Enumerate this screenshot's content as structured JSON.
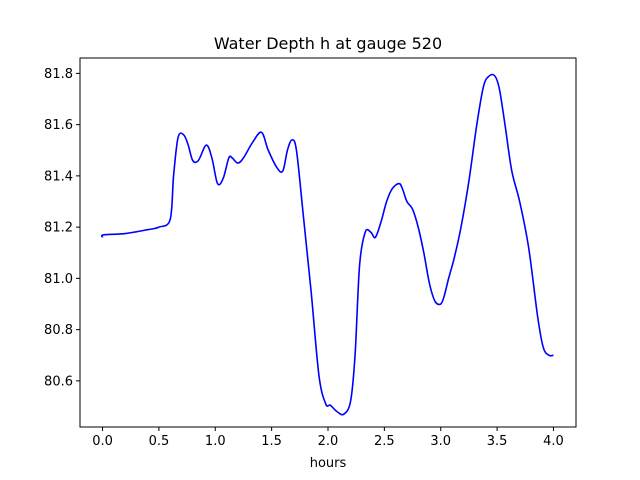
{
  "chart_data": {
    "type": "line",
    "title": "Water Depth h at gauge 520",
    "xlabel": "hours",
    "ylabel": "",
    "xlim": [
      -0.2,
      4.2
    ],
    "ylim": [
      80.42,
      81.86
    ],
    "xticks": [
      0.0,
      0.5,
      1.0,
      1.5,
      2.0,
      2.5,
      3.0,
      3.5,
      4.0
    ],
    "xtick_labels": [
      "0.0",
      "0.5",
      "1.0",
      "1.5",
      "2.0",
      "2.5",
      "3.0",
      "3.5",
      "4.0"
    ],
    "yticks": [
      80.6,
      80.8,
      81.0,
      81.2,
      81.4,
      81.6,
      81.8
    ],
    "ytick_labels": [
      "80.6",
      "80.8",
      "81.0",
      "81.2",
      "81.4",
      "81.6",
      "81.8"
    ],
    "grid": false,
    "series": [
      {
        "color": "#0000ff",
        "x": [
          0.0,
          0.01,
          0.2,
          0.4,
          0.5,
          0.6,
          0.63,
          0.67,
          0.72,
          0.76,
          0.8,
          0.85,
          0.92,
          0.97,
          1.02,
          1.07,
          1.12,
          1.15,
          1.2,
          1.25,
          1.33,
          1.41,
          1.47,
          1.55,
          1.6,
          1.64,
          1.68,
          1.72,
          1.78,
          1.85,
          1.92,
          1.98,
          2.02,
          2.08,
          2.14,
          2.2,
          2.24,
          2.28,
          2.33,
          2.38,
          2.42,
          2.47,
          2.52,
          2.57,
          2.63,
          2.66,
          2.7,
          2.75,
          2.8,
          2.85,
          2.9,
          2.95,
          3.0,
          3.03,
          3.07,
          3.12,
          3.18,
          3.25,
          3.32,
          3.38,
          3.43,
          3.48,
          3.52,
          3.57,
          3.63,
          3.7,
          3.78,
          3.86,
          3.91,
          3.96,
          4.0
        ],
        "y": [
          81.16,
          81.17,
          81.175,
          81.19,
          81.2,
          81.23,
          81.4,
          81.55,
          81.56,
          81.52,
          81.46,
          81.46,
          81.52,
          81.47,
          81.37,
          81.39,
          81.47,
          81.47,
          81.45,
          81.47,
          81.53,
          81.57,
          81.5,
          81.43,
          81.42,
          81.5,
          81.54,
          81.5,
          81.25,
          80.95,
          80.62,
          80.51,
          80.505,
          80.48,
          80.47,
          80.52,
          80.7,
          81.05,
          81.18,
          81.18,
          81.16,
          81.22,
          81.3,
          81.35,
          81.37,
          81.35,
          81.3,
          81.27,
          81.2,
          81.1,
          80.98,
          80.91,
          80.9,
          80.93,
          81.0,
          81.08,
          81.2,
          81.38,
          81.6,
          81.75,
          81.79,
          81.79,
          81.74,
          81.6,
          81.42,
          81.3,
          81.12,
          80.85,
          80.73,
          80.7,
          80.7
        ]
      }
    ]
  }
}
